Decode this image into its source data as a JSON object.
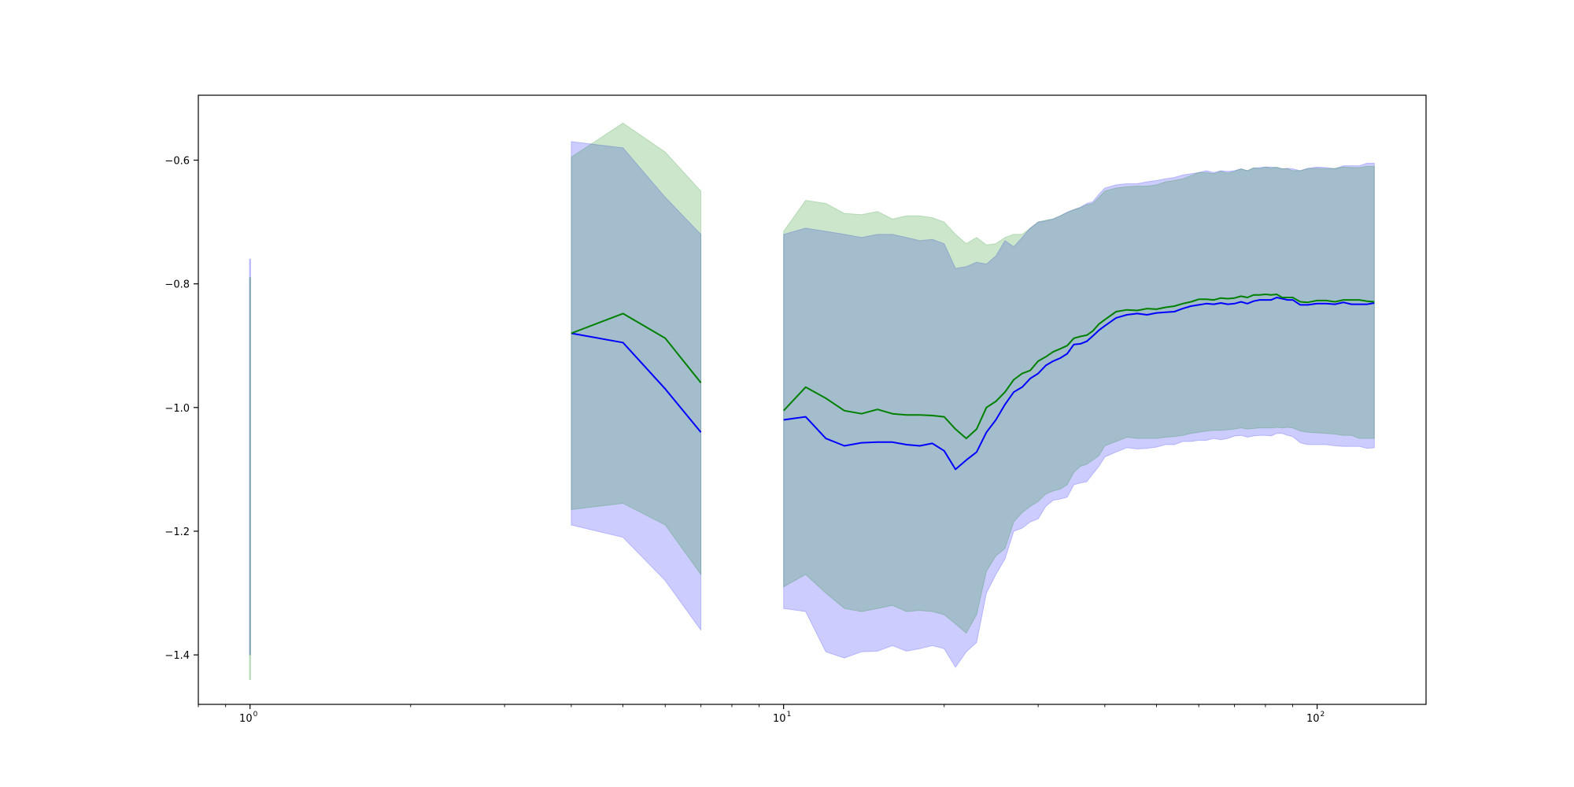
{
  "chart_data": {
    "type": "line",
    "title": "",
    "xlabel": "",
    "ylabel": "",
    "x_scale": "log",
    "xlim": [
      0.8,
      160
    ],
    "ylim": [
      -1.48,
      -0.495
    ],
    "grid": false,
    "legend": "none",
    "x_ticks": [
      {
        "value": 1,
        "label": "10",
        "exp": "0"
      },
      {
        "value": 10,
        "label": "10",
        "exp": "1"
      },
      {
        "value": 100,
        "label": "10",
        "exp": "2"
      }
    ],
    "y_ticks": [
      {
        "value": -0.6,
        "label": "−0.6"
      },
      {
        "value": -0.8,
        "label": "−0.8"
      },
      {
        "value": -1.0,
        "label": "−1.0"
      },
      {
        "value": -1.2,
        "label": "−1.2"
      },
      {
        "value": -1.4,
        "label": "−1.4"
      }
    ],
    "series": [
      {
        "color": "#0000ff",
        "band_color": "#0000ff",
        "band_opacity": 0.2,
        "segments": [
          {
            "x": [
              1,
              1
            ],
            "y": [
              -1.09,
              -1.09
            ],
            "upper": [
              -0.76,
              -0.76
            ],
            "lower": [
              -1.4,
              -1.4
            ]
          },
          {
            "x": [
              4,
              5,
              6,
              7
            ],
            "y": [
              -0.88,
              -0.895,
              -0.97,
              -1.04
            ],
            "upper": [
              -0.57,
              -0.58,
              -0.66,
              -0.72
            ],
            "lower": [
              -1.19,
              -1.21,
              -1.28,
              -1.36
            ]
          },
          {
            "x": [
              10,
              11,
              12,
              13,
              14,
              15,
              16,
              17,
              18,
              19,
              20,
              21,
              22,
              23,
              24,
              25,
              26,
              27,
              28,
              29,
              30,
              31,
              32,
              33,
              34,
              35,
              36,
              37,
              38,
              39,
              40,
              42,
              44,
              46,
              48,
              50,
              52,
              54,
              56,
              58,
              60,
              62,
              64,
              66,
              68,
              70,
              72,
              74,
              76,
              78,
              80,
              82,
              84,
              86,
              88,
              90,
              93,
              96,
              100,
              104,
              108,
              112,
              116,
              120,
              124,
              128
            ],
            "y": [
              -1.02,
              -1.015,
              -1.05,
              -1.062,
              -1.057,
              -1.056,
              -1.056,
              -1.06,
              -1.062,
              -1.058,
              -1.07,
              -1.1,
              -1.085,
              -1.072,
              -1.04,
              -1.02,
              -0.995,
              -0.975,
              -0.967,
              -0.953,
              -0.945,
              -0.932,
              -0.925,
              -0.92,
              -0.913,
              -0.898,
              -0.897,
              -0.893,
              -0.884,
              -0.875,
              -0.868,
              -0.855,
              -0.85,
              -0.848,
              -0.85,
              -0.847,
              -0.846,
              -0.845,
              -0.84,
              -0.836,
              -0.834,
              -0.832,
              -0.833,
              -0.831,
              -0.833,
              -0.832,
              -0.829,
              -0.832,
              -0.828,
              -0.826,
              -0.826,
              -0.826,
              -0.822,
              -0.824,
              -0.826,
              -0.826,
              -0.834,
              -0.834,
              -0.832,
              -0.832,
              -0.833,
              -0.83,
              -0.833,
              -0.833,
              -0.833,
              -0.831
            ],
            "upper": [
              -0.72,
              -0.71,
              -0.715,
              -0.72,
              -0.725,
              -0.72,
              -0.72,
              -0.725,
              -0.73,
              -0.728,
              -0.735,
              -0.775,
              -0.772,
              -0.765,
              -0.768,
              -0.755,
              -0.73,
              -0.74,
              -0.725,
              -0.71,
              -0.7,
              -0.698,
              -0.695,
              -0.69,
              -0.684,
              -0.68,
              -0.676,
              -0.67,
              -0.667,
              -0.655,
              -0.645,
              -0.64,
              -0.638,
              -0.638,
              -0.635,
              -0.633,
              -0.63,
              -0.628,
              -0.624,
              -0.622,
              -0.62,
              -0.617,
              -0.62,
              -0.617,
              -0.618,
              -0.617,
              -0.614,
              -0.617,
              -0.613,
              -0.612,
              -0.611,
              -0.611,
              -0.612,
              -0.614,
              -0.613,
              -0.614,
              -0.617,
              -0.613,
              -0.611,
              -0.612,
              -0.614,
              -0.609,
              -0.609,
              -0.609,
              -0.605,
              -0.605
            ],
            "lower": [
              -1.325,
              -1.33,
              -1.395,
              -1.405,
              -1.395,
              -1.394,
              -1.385,
              -1.394,
              -1.39,
              -1.385,
              -1.39,
              -1.42,
              -1.395,
              -1.38,
              -1.3,
              -1.27,
              -1.245,
              -1.2,
              -1.195,
              -1.185,
              -1.18,
              -1.16,
              -1.15,
              -1.148,
              -1.145,
              -1.125,
              -1.122,
              -1.12,
              -1.107,
              -1.095,
              -1.08,
              -1.072,
              -1.065,
              -1.067,
              -1.066,
              -1.064,
              -1.06,
              -1.06,
              -1.055,
              -1.055,
              -1.053,
              -1.053,
              -1.05,
              -1.052,
              -1.05,
              -1.046,
              -1.045,
              -1.048,
              -1.046,
              -1.045,
              -1.045,
              -1.046,
              -1.042,
              -1.042,
              -1.045,
              -1.047,
              -1.057,
              -1.06,
              -1.06,
              -1.06,
              -1.062,
              -1.063,
              -1.063,
              -1.063,
              -1.066,
              -1.065
            ]
          }
        ]
      },
      {
        "color": "#008000",
        "band_color": "#008000",
        "band_opacity": 0.2,
        "segments": [
          {
            "x": [
              1,
              1
            ],
            "y": [
              -1.11,
              -1.11
            ],
            "upper": [
              -0.79,
              -0.79
            ],
            "lower": [
              -1.44,
              -1.44
            ]
          },
          {
            "x": [
              4,
              5,
              6,
              7
            ],
            "y": [
              -0.88,
              -0.848,
              -0.888,
              -0.96
            ],
            "upper": [
              -0.595,
              -0.54,
              -0.587,
              -0.65
            ],
            "lower": [
              -1.165,
              -1.155,
              -1.19,
              -1.27
            ]
          },
          {
            "x": [
              10,
              11,
              12,
              13,
              14,
              15,
              16,
              17,
              18,
              19,
              20,
              21,
              22,
              23,
              24,
              25,
              26,
              27,
              28,
              29,
              30,
              31,
              32,
              33,
              34,
              35,
              36,
              37,
              38,
              39,
              40,
              42,
              44,
              46,
              48,
              50,
              52,
              54,
              56,
              58,
              60,
              62,
              64,
              66,
              68,
              70,
              72,
              74,
              76,
              78,
              80,
              82,
              84,
              86,
              88,
              90,
              93,
              96,
              100,
              104,
              108,
              112,
              116,
              120,
              124,
              128
            ],
            "y": [
              -1.005,
              -0.967,
              -0.985,
              -1.005,
              -1.01,
              -1.003,
              -1.01,
              -1.012,
              -1.012,
              -1.013,
              -1.015,
              -1.035,
              -1.05,
              -1.035,
              -1.0,
              -0.99,
              -0.975,
              -0.955,
              -0.945,
              -0.94,
              -0.925,
              -0.918,
              -0.91,
              -0.905,
              -0.9,
              -0.888,
              -0.885,
              -0.883,
              -0.876,
              -0.865,
              -0.858,
              -0.845,
              -0.842,
              -0.843,
              -0.84,
              -0.841,
              -0.838,
              -0.836,
              -0.832,
              -0.829,
              -0.825,
              -0.825,
              -0.826,
              -0.823,
              -0.824,
              -0.823,
              -0.82,
              -0.822,
              -0.818,
              -0.818,
              -0.817,
              -0.818,
              -0.817,
              -0.822,
              -0.822,
              -0.822,
              -0.829,
              -0.83,
              -0.827,
              -0.827,
              -0.829,
              -0.826,
              -0.826,
              -0.826,
              -0.828,
              -0.829
            ],
            "upper": [
              -0.715,
              -0.665,
              -0.67,
              -0.686,
              -0.688,
              -0.683,
              -0.695,
              -0.69,
              -0.69,
              -0.693,
              -0.7,
              -0.72,
              -0.735,
              -0.725,
              -0.737,
              -0.735,
              -0.725,
              -0.72,
              -0.72,
              -0.71,
              -0.7,
              -0.697,
              -0.695,
              -0.69,
              -0.685,
              -0.68,
              -0.677,
              -0.672,
              -0.67,
              -0.66,
              -0.65,
              -0.645,
              -0.643,
              -0.642,
              -0.642,
              -0.64,
              -0.635,
              -0.633,
              -0.63,
              -0.625,
              -0.62,
              -0.62,
              -0.622,
              -0.618,
              -0.621,
              -0.618,
              -0.614,
              -0.617,
              -0.612,
              -0.614,
              -0.611,
              -0.613,
              -0.611,
              -0.614,
              -0.614,
              -0.617,
              -0.617,
              -0.614,
              -0.613,
              -0.614,
              -0.613,
              -0.611,
              -0.612,
              -0.612,
              -0.61,
              -0.61
            ],
            "lower": [
              -1.29,
              -1.27,
              -1.3,
              -1.325,
              -1.33,
              -1.325,
              -1.32,
              -1.33,
              -1.328,
              -1.33,
              -1.335,
              -1.35,
              -1.365,
              -1.335,
              -1.265,
              -1.24,
              -1.228,
              -1.185,
              -1.17,
              -1.16,
              -1.152,
              -1.14,
              -1.135,
              -1.132,
              -1.125,
              -1.105,
              -1.095,
              -1.092,
              -1.085,
              -1.078,
              -1.062,
              -1.055,
              -1.048,
              -1.05,
              -1.05,
              -1.05,
              -1.048,
              -1.047,
              -1.045,
              -1.042,
              -1.04,
              -1.038,
              -1.037,
              -1.037,
              -1.036,
              -1.035,
              -1.033,
              -1.035,
              -1.034,
              -1.033,
              -1.033,
              -1.033,
              -1.032,
              -1.033,
              -1.032,
              -1.033,
              -1.038,
              -1.04,
              -1.041,
              -1.042,
              -1.043,
              -1.045,
              -1.045,
              -1.05,
              -1.05,
              -1.05
            ]
          }
        ]
      }
    ]
  }
}
